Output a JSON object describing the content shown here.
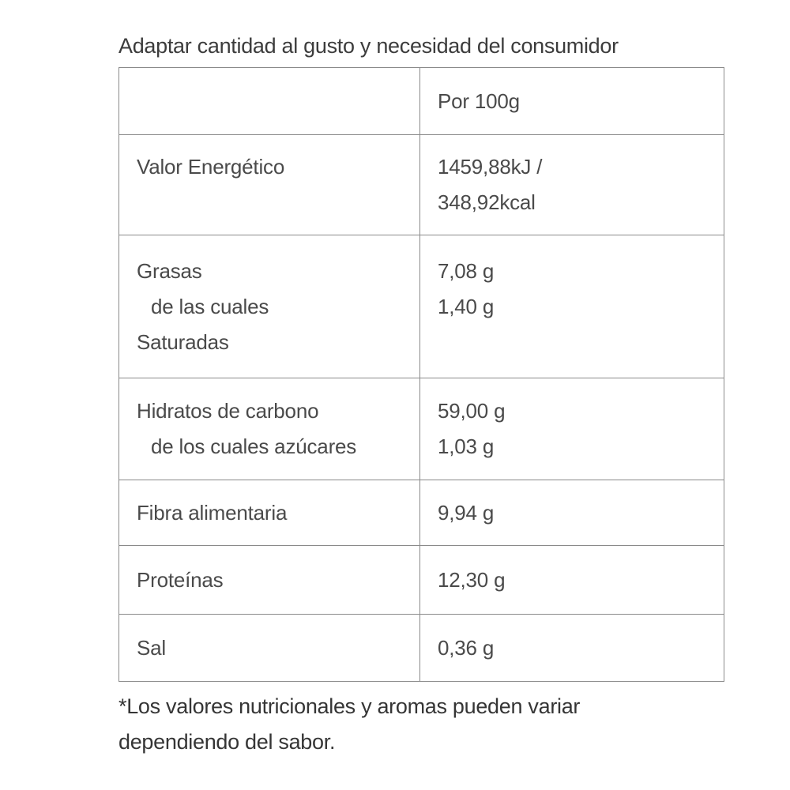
{
  "page": {
    "note_top": "Adaptar cantidad al gusto y necesidad del consumidor"
  },
  "table": {
    "column_header": "Por 100g",
    "rows": [
      {
        "name": "valor-energetico",
        "label_lines": [
          "Valor Energético"
        ],
        "value_lines": [
          "1459,88kJ /",
          "348,92kcal"
        ]
      },
      {
        "name": "grasas",
        "label_lines": [
          "Grasas",
          "de las cuales",
          "Saturadas"
        ],
        "value_lines": [
          "7,08 g",
          "1,40 g"
        ]
      },
      {
        "name": "hidratos-de-carbono",
        "label_lines": [
          "Hidratos de carbono",
          "de los cuales azúcares"
        ],
        "value_lines": [
          "59,00 g",
          "1,03 g"
        ]
      },
      {
        "name": "fibra-alimentaria",
        "label_lines": [
          "Fibra alimentaria"
        ],
        "value_lines": [
          "9,94 g"
        ]
      },
      {
        "name": "proteinas",
        "label_lines": [
          "Proteínas"
        ],
        "value_lines": [
          "12,30 g"
        ]
      },
      {
        "name": "sal",
        "label_lines": [
          "Sal"
        ],
        "value_lines": [
          "0,36 g"
        ]
      }
    ]
  },
  "footnote": {
    "line1": "*Los valores nutricionales y aromas pueden variar",
    "line2": "dependiendo del sabor."
  },
  "colors": {
    "background": "#ffffff",
    "text": "#4a4a4a",
    "heading_text": "#3c3c3c",
    "border": "#8a8a8a"
  }
}
